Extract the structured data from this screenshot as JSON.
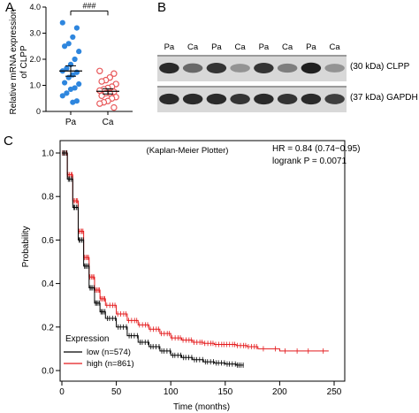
{
  "panels": {
    "a": "A",
    "b": "B",
    "c": "C"
  },
  "colors": {
    "pa": "#2e86de",
    "ca": "#e8585a",
    "low": "#000000",
    "high": "#e41a1c"
  },
  "chart_data": [
    {
      "type": "scatter",
      "ylabel_line1": "Relative mRNA expression",
      "ylabel_line2": "of CLPP",
      "categories": [
        "Pa",
        "Ca"
      ],
      "significance": "###",
      "ylim": [
        0,
        4
      ],
      "yticks": [
        "0",
        "1.0",
        "2.0",
        "3.0",
        "4.0"
      ],
      "yticks_values": [
        0,
        1,
        2,
        3,
        4
      ],
      "series": [
        {
          "name": "Pa",
          "mean": 1.55,
          "sem": 0.2,
          "values": [
            3.4,
            3.2,
            2.85,
            2.6,
            2.5,
            2.3,
            2.0,
            1.8,
            1.65,
            1.55,
            1.5,
            1.4,
            1.3,
            1.1,
            1.05,
            0.9,
            0.85,
            0.7,
            0.6,
            0.4,
            0.35
          ]
        },
        {
          "name": "Ca",
          "mean": 0.77,
          "sem": 0.1,
          "values": [
            1.55,
            1.45,
            1.3,
            1.2,
            1.15,
            1.05,
            0.95,
            0.9,
            0.85,
            0.8,
            0.75,
            0.7,
            0.7,
            0.6,
            0.55,
            0.5,
            0.4,
            0.35,
            0.3,
            0.15
          ]
        }
      ]
    },
    {
      "type": "blot",
      "lanes": [
        "Pa",
        "Ca",
        "Pa",
        "Ca",
        "Pa",
        "Ca",
        "Pa",
        "Ca"
      ],
      "rows": [
        {
          "label": "(30 kDa) CLPP",
          "intensity": [
            0.85,
            0.55,
            0.8,
            0.35,
            0.8,
            0.45,
            0.9,
            0.35
          ]
        },
        {
          "label": "(37 kDa) GAPDH",
          "intensity": [
            0.85,
            0.85,
            0.85,
            0.8,
            0.85,
            0.8,
            0.85,
            0.75
          ]
        }
      ]
    },
    {
      "type": "line",
      "title": "(Kaplan-Meier Plotter)",
      "hr": "HR = 0.84 (0.74−0.95)",
      "logrank": "logrank P = 0.0071",
      "xlabel": "Time (months)",
      "ylabel": "Probability",
      "xlim": [
        0,
        250
      ],
      "ylim": [
        0,
        1
      ],
      "xticks": [
        "0",
        "50",
        "100",
        "150",
        "200",
        "250"
      ],
      "xticks_values": [
        0,
        50,
        100,
        150,
        200,
        250
      ],
      "yticks": [
        "0.0",
        "0.2",
        "0.4",
        "0.6",
        "0.8",
        "1.0"
      ],
      "yticks_values": [
        0,
        0.2,
        0.4,
        0.6,
        0.8,
        1.0
      ],
      "legend_title": "Expression",
      "series": [
        {
          "name": "low (n=574)",
          "color": "#000000",
          "x": [
            0,
            5,
            10,
            15,
            20,
            25,
            30,
            35,
            40,
            50,
            60,
            70,
            80,
            90,
            100,
            110,
            120,
            130,
            140,
            150,
            160,
            167
          ],
          "y": [
            1.0,
            0.88,
            0.75,
            0.6,
            0.48,
            0.38,
            0.31,
            0.27,
            0.24,
            0.2,
            0.16,
            0.13,
            0.11,
            0.09,
            0.07,
            0.06,
            0.05,
            0.04,
            0.035,
            0.03,
            0.025,
            0.025
          ]
        },
        {
          "name": "high (n=861)",
          "color": "#e41a1c",
          "x": [
            0,
            5,
            10,
            15,
            20,
            25,
            30,
            35,
            40,
            50,
            60,
            70,
            80,
            90,
            100,
            110,
            120,
            130,
            140,
            150,
            160,
            170,
            180,
            200,
            220,
            245
          ],
          "y": [
            1.0,
            0.9,
            0.78,
            0.64,
            0.52,
            0.43,
            0.37,
            0.33,
            0.3,
            0.26,
            0.23,
            0.21,
            0.19,
            0.17,
            0.15,
            0.14,
            0.13,
            0.125,
            0.12,
            0.12,
            0.115,
            0.11,
            0.1,
            0.09,
            0.09,
            0.09
          ]
        }
      ]
    }
  ]
}
